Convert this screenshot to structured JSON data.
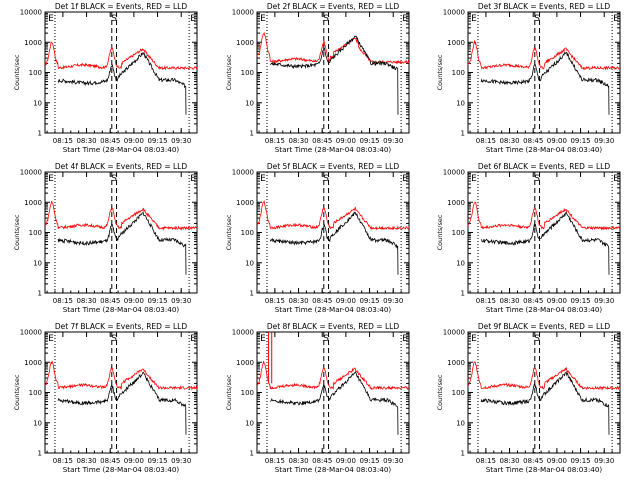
{
  "layout_note": "",
  "chart_data": [
    {
      "type": "line",
      "title": "Det 1f  BLACK = Events, RED = LLD",
      "xlabel": "Start Time (28-Mar-04 08:03:40)",
      "ylabel": "Counts/sec",
      "x_tick_labels": [
        "08:15",
        "08:30",
        "08:45",
        "09:00",
        "09:15",
        "09:30"
      ],
      "y_tick_labels": [
        "1",
        "10",
        "100",
        "1000",
        "10000"
      ],
      "y_scale": "log",
      "ylim": [
        1,
        10000
      ],
      "xlim": [
        "08:03:40",
        "09:40"
      ],
      "marker_labels": [
        "E",
        "S",
        "E"
      ],
      "series": [
        {
          "name": "Events",
          "color": "#000000"
        },
        {
          "name": "LLD",
          "color": "#ff0000"
        }
      ]
    },
    {
      "type": "line",
      "title": "Det 2f  BLACK = Events, RED = LLD",
      "xlabel": "Start Time (28-Mar-04 08:03:40)",
      "ylabel": "Counts/sec",
      "x_tick_labels": [
        "08:15",
        "08:30",
        "08:45",
        "09:00",
        "09:15",
        "09:30"
      ],
      "y_tick_labels": [
        "1",
        "10",
        "100",
        "1000",
        "10000"
      ],
      "y_scale": "log",
      "ylim": [
        1,
        10000
      ],
      "xlim": [
        "08:03:40",
        "09:40"
      ],
      "marker_labels": [
        "E",
        "S",
        "E"
      ],
      "series": [
        {
          "name": "Events",
          "color": "#000000"
        },
        {
          "name": "LLD",
          "color": "#ff0000"
        }
      ]
    },
    {
      "type": "line",
      "title": "Det 3f  BLACK = Events, RED = LLD",
      "xlabel": "Start Time (28-Mar-04 08:03:40)",
      "ylabel": "Counts/sec",
      "x_tick_labels": [
        "08:15",
        "08:30",
        "08:45",
        "09:00",
        "09:15",
        "09:30"
      ],
      "y_tick_labels": [
        "1",
        "10",
        "100",
        "1000",
        "10000"
      ],
      "y_scale": "log",
      "ylim": [
        1,
        10000
      ],
      "xlim": [
        "08:03:40",
        "09:40"
      ],
      "marker_labels": [
        "E",
        "S",
        "E"
      ],
      "series": [
        {
          "name": "Events",
          "color": "#000000"
        },
        {
          "name": "LLD",
          "color": "#ff0000"
        }
      ]
    },
    {
      "type": "line",
      "title": "Det 4f  BLACK = Events, RED = LLD",
      "xlabel": "Start Time (28-Mar-04 08:03:40)",
      "ylabel": "Counts/sec",
      "x_tick_labels": [
        "08:15",
        "08:30",
        "08:45",
        "09:00",
        "09:15",
        "09:30"
      ],
      "y_tick_labels": [
        "1",
        "10",
        "100",
        "1000",
        "10000"
      ],
      "y_scale": "log",
      "ylim": [
        1,
        10000
      ],
      "xlim": [
        "08:03:40",
        "09:40"
      ],
      "marker_labels": [
        "E",
        "S",
        "E"
      ],
      "series": [
        {
          "name": "Events",
          "color": "#000000"
        },
        {
          "name": "LLD",
          "color": "#ff0000"
        }
      ]
    },
    {
      "type": "line",
      "title": "Det 5f  BLACK = Events, RED = LLD",
      "xlabel": "Start Time (28-Mar-04 08:03:40)",
      "ylabel": "Counts/sec",
      "x_tick_labels": [
        "08:15",
        "08:30",
        "08:45",
        "09:00",
        "09:15",
        "09:30"
      ],
      "y_tick_labels": [
        "1",
        "10",
        "100",
        "1000",
        "10000"
      ],
      "y_scale": "log",
      "ylim": [
        1,
        10000
      ],
      "xlim": [
        "08:03:40",
        "09:40"
      ],
      "marker_labels": [
        "E",
        "S",
        "E"
      ],
      "series": [
        {
          "name": "Events",
          "color": "#000000"
        },
        {
          "name": "LLD",
          "color": "#ff0000"
        }
      ]
    },
    {
      "type": "line",
      "title": "Det 6f  BLACK = Events, RED = LLD",
      "xlabel": "Start Time (28-Mar-04 08:03:40)",
      "ylabel": "Counts/sec",
      "x_tick_labels": [
        "08:15",
        "08:30",
        "08:45",
        "09:00",
        "09:15",
        "09:30"
      ],
      "y_tick_labels": [
        "1",
        "10",
        "100",
        "1000",
        "10000"
      ],
      "y_scale": "log",
      "ylim": [
        1,
        10000
      ],
      "xlim": [
        "08:03:40",
        "09:40"
      ],
      "marker_labels": [
        "E",
        "S",
        "E"
      ],
      "series": [
        {
          "name": "Events",
          "color": "#000000"
        },
        {
          "name": "LLD",
          "color": "#ff0000"
        }
      ]
    },
    {
      "type": "line",
      "title": "Det 7f  BLACK = Events, RED = LLD",
      "xlabel": "Start Time (28-Mar-04 08:03:40)",
      "ylabel": "Counts/sec",
      "x_tick_labels": [
        "08:15",
        "08:30",
        "08:45",
        "09:00",
        "09:15",
        "09:30"
      ],
      "y_tick_labels": [
        "1",
        "10",
        "100",
        "1000",
        "10000"
      ],
      "y_scale": "log",
      "ylim": [
        1,
        10000
      ],
      "xlim": [
        "08:03:40",
        "09:40"
      ],
      "marker_labels": [
        "E",
        "S",
        "E"
      ],
      "series": [
        {
          "name": "Events",
          "color": "#000000"
        },
        {
          "name": "LLD",
          "color": "#ff0000"
        }
      ]
    },
    {
      "type": "line",
      "title": "Det 8f  BLACK = Events, RED = LLD",
      "xlabel": "Start Time (28-Mar-04 08:03:40)",
      "ylabel": "Counts/sec",
      "x_tick_labels": [
        "08:15",
        "08:30",
        "08:45",
        "09:00",
        "09:15",
        "09:30"
      ],
      "y_tick_labels": [
        "1",
        "10",
        "100",
        "1000",
        "10000"
      ],
      "y_scale": "log",
      "ylim": [
        1,
        10000
      ],
      "xlim": [
        "08:03:40",
        "09:40"
      ],
      "marker_labels": [
        "E",
        "S",
        "E"
      ],
      "series": [
        {
          "name": "Events",
          "color": "#000000"
        },
        {
          "name": "LLD",
          "color": "#ff0000"
        }
      ]
    },
    {
      "type": "line",
      "title": "Det 9f  BLACK = Events, RED = LLD",
      "xlabel": "Start Time (28-Mar-04 08:03:40)",
      "ylabel": "Counts/sec",
      "x_tick_labels": [
        "08:15",
        "08:30",
        "08:45",
        "09:00",
        "09:15",
        "09:30"
      ],
      "y_tick_labels": [
        "1",
        "10",
        "100",
        "1000",
        "10000"
      ],
      "y_scale": "log",
      "ylim": [
        1,
        10000
      ],
      "xlim": [
        "08:03:40",
        "09:40"
      ],
      "marker_labels": [
        "E",
        "S",
        "E"
      ],
      "series": [
        {
          "name": "Events",
          "color": "#000000"
        },
        {
          "name": "LLD",
          "color": "#ff0000"
        }
      ]
    }
  ]
}
